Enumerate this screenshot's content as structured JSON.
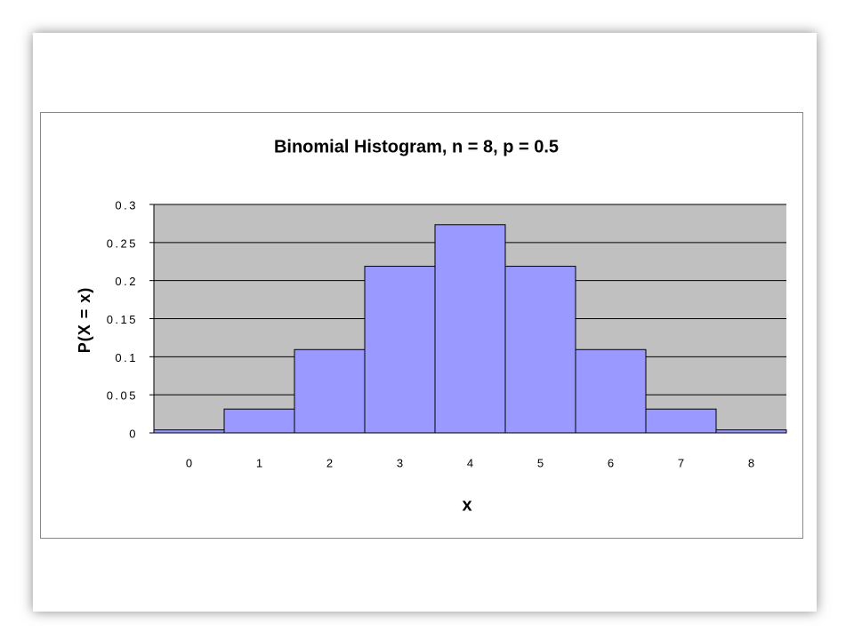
{
  "chart_data": {
    "type": "bar",
    "title": "Binomial Histogram, n = 8, p = 0.5",
    "x_label": "x",
    "y_label": "P(X = x)",
    "categories": [
      "0",
      "1",
      "2",
      "3",
      "4",
      "5",
      "6",
      "7",
      "8"
    ],
    "values": [
      0.0039,
      0.0313,
      0.1094,
      0.2188,
      0.2734,
      0.2188,
      0.1094,
      0.0313,
      0.0039
    ],
    "color": "#9999ff",
    "ylim": [
      0,
      0.3
    ],
    "yticks": [
      0,
      0.05,
      0.1,
      0.15,
      0.2,
      0.25,
      0.3
    ],
    "grid": true
  }
}
